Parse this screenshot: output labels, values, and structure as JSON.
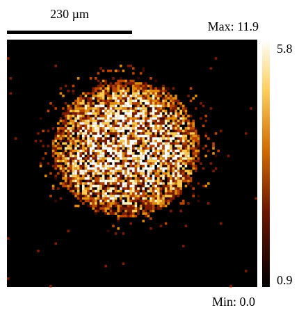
{
  "scale_bar": {
    "label": "230 µm"
  },
  "max_label": "Max: 11.9",
  "min_label": "Min: 0.0",
  "colorbar": {
    "ticks": [
      0.9,
      5.8
    ]
  }
}
